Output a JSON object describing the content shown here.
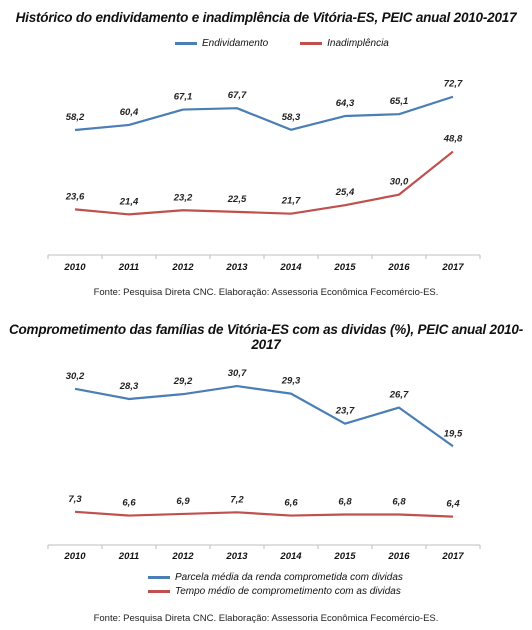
{
  "charts": [
    {
      "title": "Histórico do endividamento e inadimplência de Vitória-ES, PEIC anual 2010-2017",
      "source": "Fonte: Pesquisa Direta CNC.  Elaboração: Assessoria Econômica Fecomércio-ES."
    },
    {
      "title": "Comprometimento das famílias de Vitória-ES com as dividas (%), PEIC anual 2010-2017",
      "source": "Fonte: Pesquisa Direta CNC.  Elaboração: Assessoria Econômica Fecomércio-ES."
    }
  ],
  "chart_data": [
    {
      "type": "line",
      "title": "Histórico do endividamento e inadimplência de Vitória-ES, PEIC anual 2010-2017",
      "categories": [
        "2010",
        "2011",
        "2012",
        "2013",
        "2014",
        "2015",
        "2016",
        "2017"
      ],
      "series": [
        {
          "name": "Endividamento",
          "color": "#4a7eb5",
          "values": [
            58.2,
            60.4,
            67.1,
            67.7,
            58.3,
            64.3,
            65.1,
            72.7
          ],
          "labels": [
            "58,2",
            "60,4",
            "67,1",
            "67,7",
            "58,3",
            "64,3",
            "65,1",
            "72,7"
          ]
        },
        {
          "name": "Inadimplência",
          "color": "#c0504d",
          "values": [
            23.6,
            21.4,
            23.2,
            22.5,
            21.7,
            25.4,
            30.0,
            48.8
          ],
          "labels": [
            "23,6",
            "21,4",
            "23,2",
            "22,5",
            "21,7",
            "25,4",
            "30,0",
            "48,8"
          ]
        }
      ],
      "legend_position": "top",
      "grid": false,
      "ylim": [
        5,
        80
      ]
    },
    {
      "type": "line",
      "title": "Comprometimento das famílias de Vitória-ES com as dividas (%), PEIC anual 2010-2017",
      "categories": [
        "2010",
        "2011",
        "2012",
        "2013",
        "2014",
        "2015",
        "2016",
        "2017"
      ],
      "series": [
        {
          "name": "Parcela média da renda comprometida com dividas",
          "color": "#4a7eb5",
          "values": [
            30.2,
            28.3,
            29.2,
            30.7,
            29.3,
            23.7,
            26.7,
            19.5
          ],
          "labels": [
            "30,2",
            "28,3",
            "29,2",
            "30,7",
            "29,3",
            "23,7",
            "26,7",
            "19,5"
          ]
        },
        {
          "name": "Tempo médio de comprometimento com as dividas",
          "color": "#c0504d",
          "values": [
            7.3,
            6.6,
            6.9,
            7.2,
            6.6,
            6.8,
            6.8,
            6.4
          ],
          "labels": [
            "7,3",
            "6,6",
            "6,9",
            "7,2",
            "6,6",
            "6,8",
            "6,8",
            "6,4"
          ]
        }
      ],
      "legend_position": "bottom",
      "grid": false,
      "ylim": [
        0,
        35
      ]
    }
  ]
}
